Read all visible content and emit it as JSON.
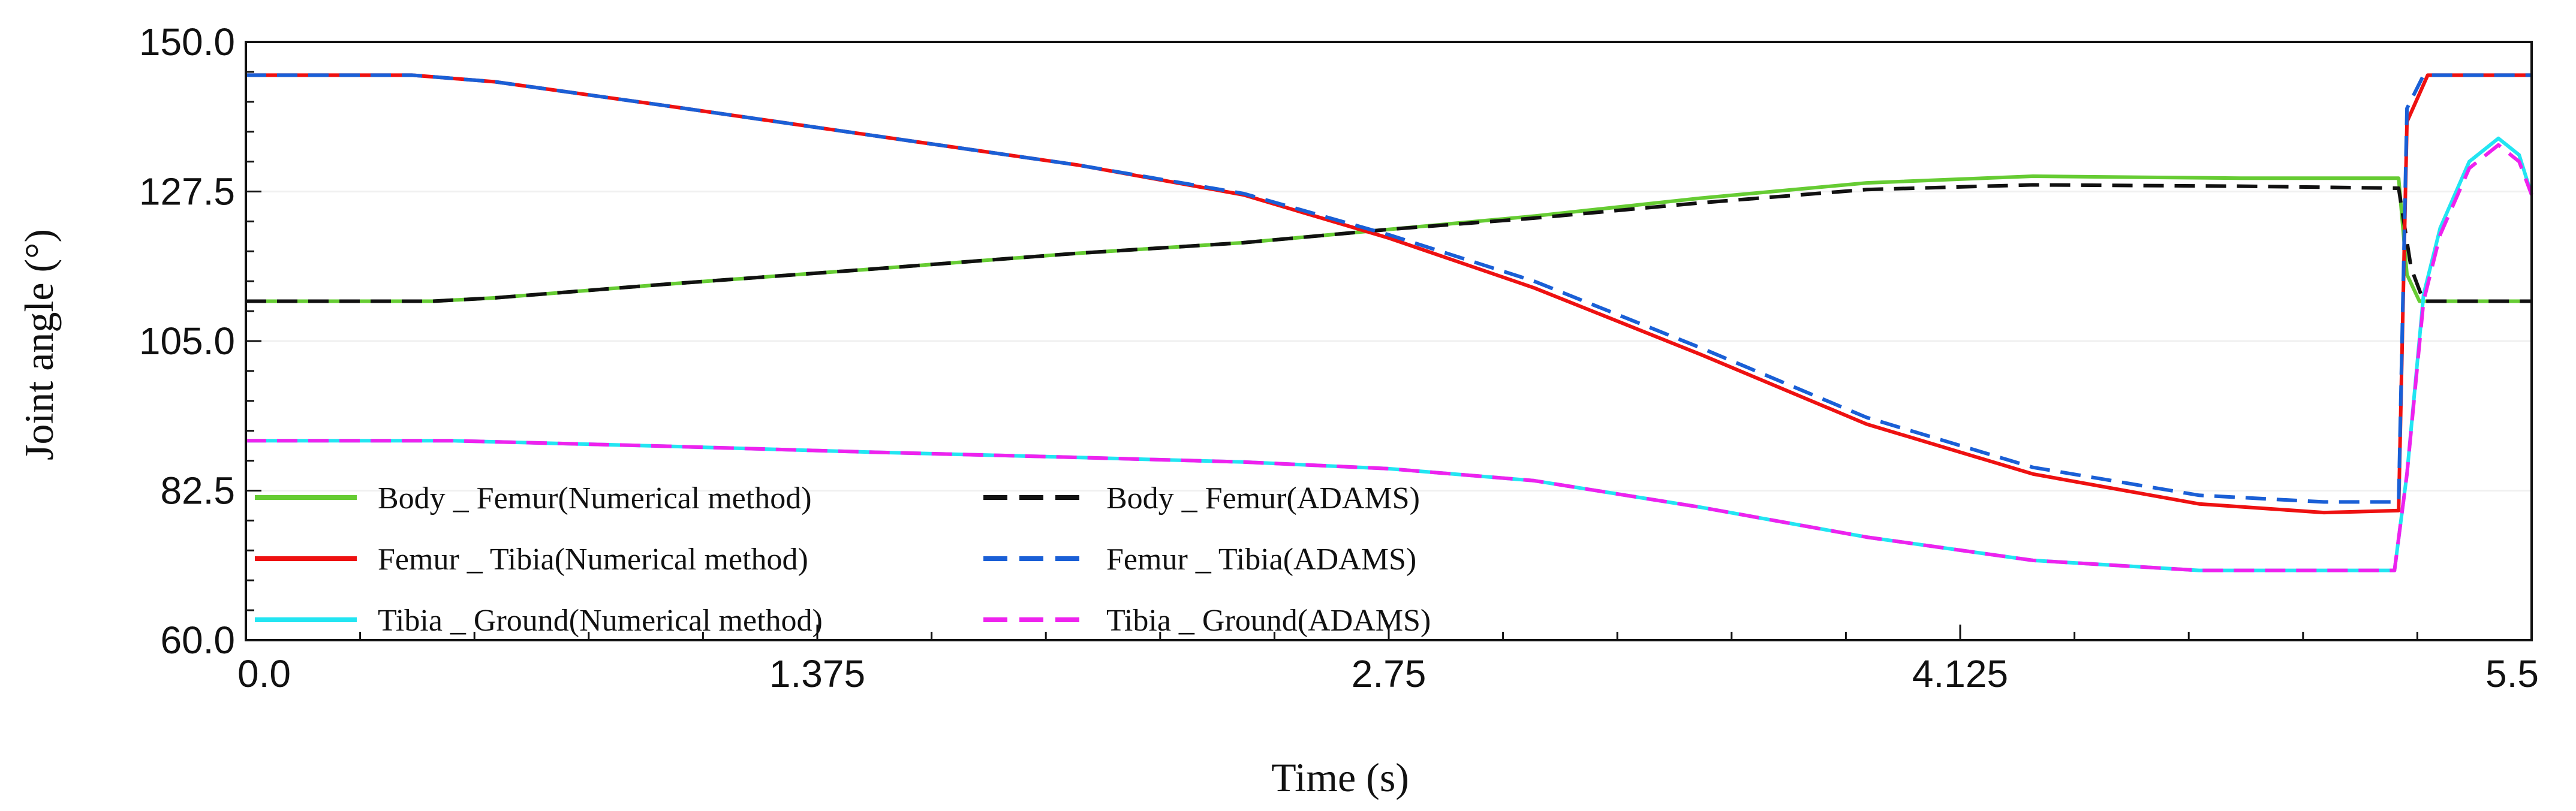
{
  "chart_data": {
    "type": "line",
    "title": "",
    "xlabel": "Time (s)",
    "ylabel": "Joint angle (°)",
    "xlim": [
      0,
      5.5
    ],
    "ylim": [
      60,
      150
    ],
    "xticks": [
      0.0,
      1.375,
      2.75,
      4.125,
      5.5
    ],
    "xtick_labels": [
      "0.0",
      "1.375",
      "2.75",
      "4.125",
      "5.5"
    ],
    "yticks": [
      60,
      82.5,
      105,
      127.5,
      150
    ],
    "ytick_labels": [
      "60.0",
      "82.5",
      "105.0",
      "127.5",
      "150.0"
    ],
    "grid": "horizontal",
    "legend_position": "bottom-left",
    "series": [
      {
        "name": "Body _ Femur(Numerical method)",
        "color": "#66cc33",
        "dash": "solid",
        "points": [
          [
            0,
            111
          ],
          [
            0.45,
            111
          ],
          [
            0.6,
            111.5
          ],
          [
            1.0,
            113.5
          ],
          [
            1.5,
            115.8
          ],
          [
            2.0,
            118.2
          ],
          [
            2.4,
            119.8
          ],
          [
            2.75,
            121.8
          ],
          [
            3.1,
            123.8
          ],
          [
            3.5,
            126.5
          ],
          [
            3.9,
            128.8
          ],
          [
            4.3,
            129.8
          ],
          [
            4.8,
            129.5
          ],
          [
            5.18,
            129.5
          ],
          [
            5.2,
            115
          ],
          [
            5.23,
            111
          ],
          [
            5.5,
            111
          ]
        ]
      },
      {
        "name": "Body _ Femur(ADAMS)",
        "color": "#111111",
        "dash": "dashed",
        "points": [
          [
            0,
            111
          ],
          [
            0.45,
            111
          ],
          [
            0.6,
            111.5
          ],
          [
            1.0,
            113.5
          ],
          [
            1.5,
            115.8
          ],
          [
            2.0,
            118.2
          ],
          [
            2.4,
            119.8
          ],
          [
            2.75,
            121.8
          ],
          [
            3.1,
            123.5
          ],
          [
            3.5,
            125.8
          ],
          [
            3.9,
            127.8
          ],
          [
            4.3,
            128.5
          ],
          [
            4.8,
            128.3
          ],
          [
            5.18,
            128
          ],
          [
            5.21,
            116
          ],
          [
            5.24,
            111
          ],
          [
            5.5,
            111
          ]
        ]
      },
      {
        "name": "Femur _ Tibia(Numerical method)",
        "color": "#ee1111",
        "dash": "solid",
        "points": [
          [
            0,
            145
          ],
          [
            0.4,
            145
          ],
          [
            0.6,
            144
          ],
          [
            1.0,
            140.5
          ],
          [
            1.5,
            136
          ],
          [
            2.0,
            131.5
          ],
          [
            2.4,
            127
          ],
          [
            2.75,
            120.5
          ],
          [
            3.1,
            113
          ],
          [
            3.5,
            103
          ],
          [
            3.9,
            92.5
          ],
          [
            4.3,
            85
          ],
          [
            4.7,
            80.5
          ],
          [
            5.0,
            79.2
          ],
          [
            5.18,
            79.5
          ],
          [
            5.2,
            138
          ],
          [
            5.25,
            145
          ],
          [
            5.5,
            145
          ]
        ]
      },
      {
        "name": "Femur _ Tibia(ADAMS)",
        "color": "#1a5fd6",
        "dash": "dashed",
        "points": [
          [
            0,
            145
          ],
          [
            0.4,
            145
          ],
          [
            0.6,
            144
          ],
          [
            1.0,
            140.5
          ],
          [
            1.5,
            136
          ],
          [
            2.0,
            131.5
          ],
          [
            2.4,
            127.2
          ],
          [
            2.75,
            121
          ],
          [
            3.1,
            114
          ],
          [
            3.5,
            104
          ],
          [
            3.9,
            93.5
          ],
          [
            4.3,
            86
          ],
          [
            4.7,
            81.8
          ],
          [
            5.0,
            80.8
          ],
          [
            5.18,
            80.8
          ],
          [
            5.2,
            140
          ],
          [
            5.24,
            145
          ],
          [
            5.5,
            145
          ]
        ]
      },
      {
        "name": "Tibia _ Ground(Numerical method)",
        "color": "#22e5f2",
        "dash": "solid",
        "points": [
          [
            0,
            90
          ],
          [
            0.5,
            90
          ],
          [
            1.0,
            89.2
          ],
          [
            1.5,
            88.3
          ],
          [
            2.0,
            87.5
          ],
          [
            2.4,
            86.8
          ],
          [
            2.75,
            85.8
          ],
          [
            3.1,
            84
          ],
          [
            3.5,
            80
          ],
          [
            3.9,
            75.5
          ],
          [
            4.3,
            72
          ],
          [
            4.7,
            70.5
          ],
          [
            5.17,
            70.5
          ],
          [
            5.2,
            85
          ],
          [
            5.24,
            112
          ],
          [
            5.28,
            122
          ],
          [
            5.35,
            132
          ],
          [
            5.42,
            135.5
          ],
          [
            5.47,
            133
          ],
          [
            5.5,
            127
          ]
        ]
      },
      {
        "name": "Tibia _ Ground(ADAMS)",
        "color": "#ee22ee",
        "dash": "dashed",
        "points": [
          [
            0,
            90
          ],
          [
            0.5,
            90
          ],
          [
            1.0,
            89.2
          ],
          [
            1.5,
            88.3
          ],
          [
            2.0,
            87.5
          ],
          [
            2.4,
            86.8
          ],
          [
            2.75,
            85.8
          ],
          [
            3.1,
            84
          ],
          [
            3.5,
            80
          ],
          [
            3.9,
            75.5
          ],
          [
            4.3,
            72
          ],
          [
            4.7,
            70.5
          ],
          [
            5.17,
            70.5
          ],
          [
            5.2,
            85
          ],
          [
            5.24,
            111
          ],
          [
            5.28,
            121
          ],
          [
            5.35,
            131
          ],
          [
            5.42,
            134.5
          ],
          [
            5.47,
            132
          ],
          [
            5.5,
            127
          ]
        ]
      }
    ],
    "legend_order": [
      0,
      1,
      2,
      3,
      4,
      5
    ]
  }
}
